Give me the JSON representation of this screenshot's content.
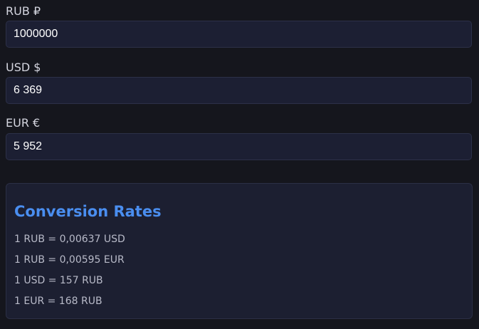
{
  "fields": [
    {
      "label": "RUB ₽",
      "value": "1000000"
    },
    {
      "label": "USD $",
      "value": "6 369"
    },
    {
      "label": "EUR €",
      "value": "5 952"
    }
  ],
  "rates": {
    "title": "Conversion Rates",
    "lines": [
      "1 RUB = 0,00637 USD",
      "1 RUB = 0,00595 EUR",
      "1 USD = 157 RUB",
      "1 EUR = 168 RUB"
    ]
  }
}
